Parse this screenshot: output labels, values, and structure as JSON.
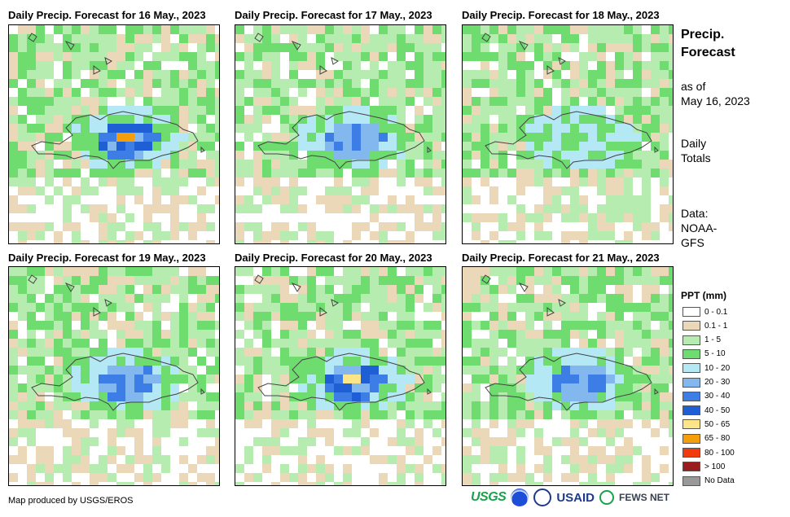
{
  "panels": [
    {
      "title": "Daily Precip. Forecast for 16 May., 2023",
      "seed": 16,
      "intensity": 3
    },
    {
      "title": "Daily Precip. Forecast for 17 May., 2023",
      "seed": 17,
      "intensity": 2
    },
    {
      "title": "Daily Precip. Forecast for 18 May., 2023",
      "seed": 18,
      "intensity": 1
    },
    {
      "title": "Daily Precip. Forecast for 19 May., 2023",
      "seed": 19,
      "intensity": 2
    },
    {
      "title": "Daily Precip. Forecast for 20 May., 2023",
      "seed": 20,
      "intensity": 3
    },
    {
      "title": "Daily Precip. Forecast for 21 May., 2023",
      "seed": 21,
      "intensity": 2
    }
  ],
  "side": {
    "title_line1": "Precip.",
    "title_line2": "Forecast",
    "asof_line1": "as of",
    "asof_line2": "May 16, 2023",
    "totals_line1": "Daily",
    "totals_line2": "Totals",
    "data_line1": "Data:",
    "data_line2": "NOAA-",
    "data_line3": "GFS"
  },
  "legend": {
    "title": "PPT (mm)",
    "items": [
      {
        "label": "0 - 0.1",
        "color": "#ffffff"
      },
      {
        "label": "0.1 - 1",
        "color": "#ead8b8"
      },
      {
        "label": "1 - 5",
        "color": "#b7ecb0"
      },
      {
        "label": "5 - 10",
        "color": "#6fdc6f"
      },
      {
        "label": "10 - 20",
        "color": "#b5e8f5"
      },
      {
        "label": "20 - 30",
        "color": "#82b8ee"
      },
      {
        "label": "30 - 40",
        "color": "#3d7ee6"
      },
      {
        "label": "40 - 50",
        "color": "#1f5fd6"
      },
      {
        "label": "50 - 65",
        "color": "#fde68a"
      },
      {
        "label": "65 - 80",
        "color": "#f59e0b"
      },
      {
        "label": "80 - 100",
        "color": "#f23b0c"
      },
      {
        "label": "> 100",
        "color": "#9b1c1c"
      },
      {
        "label": "No Data",
        "color": "#999999"
      }
    ]
  },
  "footer": {
    "credit": "Map produced by USGS/EROS"
  },
  "logos": {
    "usgs": "USGS",
    "usaid": "USAID",
    "fews": "FEWS NET"
  }
}
